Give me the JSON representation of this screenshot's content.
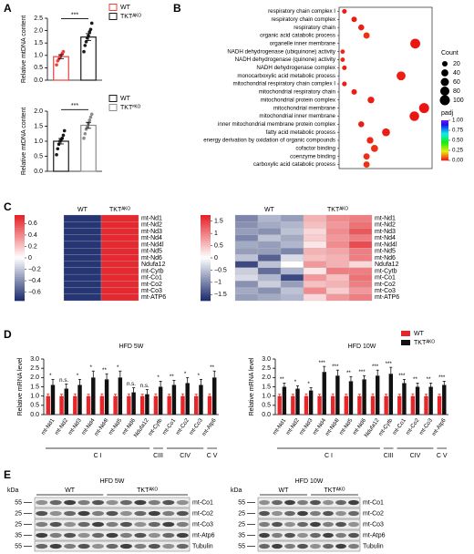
{
  "panels": [
    "A",
    "B",
    "C",
    "D",
    "E"
  ],
  "chart_data": [
    {
      "type": "bar",
      "ylabel": "Relative mtDNA content",
      "annotation": "***",
      "ylim": [
        0,
        2.5
      ],
      "yticks": [
        {
          "value": 0,
          "label": "0.0"
        },
        0.5,
        {
          "value": 1,
          "label": "1.0"
        },
        1.5,
        {
          "value": 2,
          "label": "2.0"
        },
        2.5
      ],
      "series": [
        {
          "name": "WT",
          "color": "#e8413c",
          "value": 0.95,
          "error": 0.08,
          "points": [
            0.62,
            0.78,
            0.85,
            0.95,
            1.0,
            1.08,
            1.15
          ]
        },
        {
          "name": "TKTᴬᴷᴼ",
          "color": "#1a1a1a",
          "value": 1.74,
          "error": 0.14,
          "points": [
            1.15,
            1.4,
            1.55,
            1.7,
            1.8,
            1.95,
            2.05,
            2.3
          ]
        }
      ]
    },
    {
      "type": "bar",
      "ylabel": "Relative mtDNA content",
      "annotation": "***",
      "ylim": [
        0,
        2
      ],
      "yticks": [
        {
          "value": 0,
          "label": "0.0"
        },
        0.5,
        {
          "value": 1,
          "label": "1.0"
        },
        1.5,
        {
          "value": 2,
          "label": "2.0"
        }
      ],
      "series": [
        {
          "name": "WT",
          "color": "#1a1a1a",
          "value": 1.0,
          "error": 0.09,
          "points": [
            0.55,
            0.75,
            0.9,
            1.0,
            1.05,
            1.1,
            1.2,
            1.35
          ]
        },
        {
          "name": "TKTꟳᴷᴼ",
          "color": "#8c8c8c",
          "value": 1.53,
          "error": 0.1,
          "points": [
            1.1,
            1.25,
            1.4,
            1.5,
            1.6,
            1.7,
            1.8,
            1.9
          ]
        }
      ]
    },
    {
      "type": "dot",
      "xlim": [
        0,
        0.21
      ],
      "clim": [
        0,
        1
      ],
      "categories": [
        "respiratory chain complex I",
        "respiratory chain complex",
        "respiratory chain",
        "organic acid catabolic process",
        "organelle inner membrane",
        "NADH dehydrogenase (ubiquinone) activity",
        "NADH dehydrogenase (quinone) activity",
        "NADH dehydrogenase complex",
        "monocarboxylic acid metabolic process",
        "mitochondrial respiratory chain complex I",
        "mitochondrial respiratory chain",
        "mitochondrial protein complex",
        "mitochondrial membrane",
        "mitochondrial inner membrane",
        "inner mitochondrial membrane protein complex",
        "fatty acid metabolic process",
        "energy derivation by oxidation of organic compounds",
        "cofactor binding",
        "coenzyme binding",
        "carboxylic acid catabolic process"
      ],
      "x": [
        0.012,
        0.034,
        0.05,
        0.062,
        0.172,
        0.008,
        0.008,
        0.012,
        0.14,
        0.012,
        0.034,
        0.072,
        0.192,
        0.17,
        0.05,
        0.106,
        0.07,
        0.08,
        0.062,
        0.062
      ],
      "sizes": [
        12,
        20,
        25,
        30,
        95,
        10,
        10,
        12,
        75,
        12,
        20,
        35,
        100,
        90,
        25,
        55,
        35,
        40,
        30,
        30
      ],
      "padj": [
        0.01,
        0.01,
        0.01,
        0.03,
        0.0,
        0.02,
        0.02,
        0.01,
        0.01,
        0.01,
        0.01,
        0.01,
        0.0,
        0.0,
        0.01,
        0.01,
        0.02,
        0.03,
        0.03,
        0.03
      ],
      "size_legend": {
        "title": "Count",
        "values": [
          20,
          40,
          60,
          80,
          100
        ]
      },
      "color_legend": {
        "title": "padj",
        "ticks": [
          {
            "value": 1,
            "label": "1.00"
          },
          0.75,
          {
            "value": 0.5,
            "label": "0.50"
          },
          0.25,
          {
            "value": 0,
            "label": "0.00"
          }
        ]
      }
    },
    {
      "type": "heatmap",
      "clim": [
        -0.75,
        0.75
      ],
      "groups": [
        "WT",
        "TKTᴬᴷᴼ"
      ],
      "cticks": [
        0.6,
        0.4,
        0.2,
        0,
        {
          "value": -0.2,
          "label": "−0.2"
        },
        {
          "value": -0.4,
          "label": "−0.4"
        },
        {
          "value": -0.6,
          "label": "−0.6"
        }
      ],
      "rows": [
        "mt-Nd1",
        "mt-Nd2",
        "mt-Nd3",
        "mt-Nd4",
        "mt-Nd4l",
        "mt-Nd5",
        "mt-Nd6",
        "Ndufa12",
        "mt-Cytb",
        "mt-Co1",
        "mt-Co2",
        "mt-Co3",
        "mt-ATP6"
      ],
      "values": [
        [
          -0.71,
          0.71
        ],
        [
          -0.71,
          0.71
        ],
        [
          -0.71,
          0.71
        ],
        [
          -0.71,
          0.71
        ],
        [
          -0.71,
          0.71
        ],
        [
          -0.71,
          0.71
        ],
        [
          -0.71,
          0.71
        ],
        [
          -0.71,
          0.71
        ],
        [
          -0.71,
          0.71
        ],
        [
          -0.71,
          0.71
        ],
        [
          -0.71,
          0.71
        ],
        [
          -0.71,
          0.71
        ],
        [
          -0.71,
          0.71
        ]
      ]
    },
    {
      "type": "heatmap",
      "clim": [
        -1.75,
        1.75
      ],
      "groups": [
        "WT",
        "TKTᴬᴷᴼ"
      ],
      "cticks": [
        1.5,
        1,
        0.5,
        0,
        {
          "value": -0.5,
          "label": "−0.5"
        },
        {
          "value": -1,
          "label": "−1"
        },
        {
          "value": -1.5,
          "label": "−1.5"
        }
      ],
      "rows": [
        "mt-Nd1",
        "mt-Nd2",
        "mt-Nd3",
        "mt-Nd4",
        "mt-Nd4l",
        "mt-Nd5",
        "mt-Nd6",
        "Ndufa12",
        "mt-Cytb",
        "mt-Co1",
        "mt-Co2",
        "mt-Co3",
        "mt-ATP6"
      ],
      "values": [
        [
          -1.0,
          -0.6,
          -0.8,
          0.6,
          0.9,
          1.0
        ],
        [
          -0.9,
          -0.7,
          -0.6,
          0.5,
          0.8,
          1.1
        ],
        [
          -0.8,
          -0.9,
          -0.5,
          0.3,
          0.9,
          1.3
        ],
        [
          -1.0,
          -0.5,
          -0.7,
          0.4,
          0.8,
          1.0
        ],
        [
          -0.7,
          -0.8,
          -0.6,
          0.2,
          0.9,
          1.4
        ],
        [
          -0.8,
          -0.8,
          -1.0,
          0.6,
          0.7,
          1.0
        ],
        [
          -0.5,
          -1.3,
          -0.3,
          0.5,
          0.6,
          1.0
        ],
        [
          -1.5,
          -0.5,
          0.0,
          0.8,
          0.6,
          0.3
        ],
        [
          -0.4,
          -1.2,
          -0.6,
          0.2,
          1.0,
          1.0
        ],
        [
          -0.3,
          -0.6,
          -1.5,
          0.8,
          0.5,
          1.1
        ],
        [
          -0.9,
          -0.4,
          -0.8,
          0.5,
          0.6,
          1.0
        ],
        [
          -0.7,
          -0.9,
          -0.5,
          0.9,
          0.4,
          0.8
        ],
        [
          -0.8,
          -0.7,
          -0.6,
          0.3,
          0.8,
          1.0
        ]
      ]
    },
    {
      "type": "grouped-bar",
      "title": "HFD 5W",
      "ylabel": "Relative mRNA level",
      "ylim": [
        0,
        3
      ],
      "yticks": [
        {
          "value": 0,
          "label": "0.0"
        },
        0.5,
        {
          "value": 1,
          "label": "1.0"
        },
        1.5,
        {
          "value": 2,
          "label": "2.0"
        },
        2.5,
        {
          "value": 3,
          "label": "3.0"
        }
      ],
      "categories": [
        "mt-Nd1",
        "mt-Nd2",
        "mt-Nd3",
        "mt-Nd4",
        "mt-Nd4l",
        "mt-Nd5",
        "mt-Nd6",
        "Ndufa12",
        "mt-Cytb",
        "mt-Co1",
        "mt-Co2",
        "mt-Co3",
        "mt-Atp6"
      ],
      "series": [
        {
          "color": "#e8262a",
          "values": [
            1,
            1,
            1,
            1,
            1,
            1,
            1,
            1,
            1,
            1,
            1,
            1,
            1
          ],
          "errors": [
            0.12,
            0.1,
            0.12,
            0.1,
            0.12,
            0.1,
            0.12,
            0.1,
            0.12,
            0.1,
            0.12,
            0.1,
            0.12
          ]
        },
        {
          "color": "#111111",
          "values": [
            1.6,
            1.4,
            1.6,
            2.0,
            1.9,
            2.0,
            1.2,
            1.1,
            1.5,
            1.6,
            1.7,
            1.6,
            2.0
          ],
          "errors": [
            0.3,
            0.25,
            0.3,
            0.35,
            0.3,
            0.35,
            0.25,
            0.25,
            0.3,
            0.25,
            0.3,
            0.3,
            0.35
          ]
        }
      ],
      "significance": [
        "*",
        "n.s.",
        "*",
        "*",
        "**",
        "*",
        "n.s.",
        "n.s.",
        "*",
        "**",
        "*",
        "*",
        "**"
      ],
      "groups": [
        {
          "label": "C I",
          "members": [
            "mt-Nd1",
            "mt-Nd2",
            "mt-Nd3",
            "mt-Nd4",
            "mt-Nd4l",
            "mt-Nd5",
            "mt-Nd6",
            "Ndufa12"
          ]
        },
        {
          "label": "CIII",
          "members": [
            "mt-Cytb"
          ]
        },
        {
          "label": "CIV",
          "members": [
            "mt-Co1",
            "mt-Co2",
            "mt-Co3"
          ]
        },
        {
          "label": "C V",
          "members": [
            "mt-Atp6"
          ]
        }
      ]
    },
    {
      "type": "grouped-bar",
      "title": "HFD 10W",
      "ylabel": "Relative mRNA level",
      "ylim": [
        0,
        3
      ],
      "yticks": [
        {
          "value": 0,
          "label": "0.0"
        },
        0.5,
        {
          "value": 1,
          "label": "1.0"
        },
        1.5,
        {
          "value": 2,
          "label": "2.0"
        },
        2.5,
        {
          "value": 3,
          "label": "3.0"
        }
      ],
      "categories": [
        "mt-Nd1",
        "mt-Nd2",
        "mt-Nd3",
        "mt-Nd4",
        "mt-Nd4l",
        "mt-Nd5",
        "mt-Nd6",
        "Ndufa12",
        "mt-Cytb",
        "mt-Co1",
        "mt-Co2",
        "mt-Co3",
        "mt-Atp6"
      ],
      "series": [
        {
          "name": "WT",
          "color": "#e8262a",
          "values": [
            1,
            1,
            1,
            1,
            1,
            1,
            1,
            1,
            1,
            1,
            1,
            1,
            1
          ],
          "errors": [
            0.1,
            0.1,
            0.12,
            0.1,
            0.12,
            0.1,
            0.1,
            0.12,
            0.1,
            0.1,
            0.12,
            0.1,
            0.1
          ]
        },
        {
          "name": "TKTᴬᴷᴼ",
          "color": "#111111",
          "values": [
            1.5,
            1.4,
            1.3,
            2.3,
            2.1,
            1.8,
            1.9,
            2.1,
            2.2,
            1.7,
            1.5,
            1.5,
            1.6
          ],
          "errors": [
            0.2,
            0.15,
            0.15,
            0.3,
            0.3,
            0.25,
            0.2,
            0.3,
            0.35,
            0.2,
            0.2,
            0.2,
            0.2
          ]
        }
      ],
      "significance": [
        "**",
        "*",
        "*",
        "***",
        "***",
        "**",
        "***",
        "***",
        "***",
        "***",
        "**",
        "**",
        "***"
      ],
      "groups": [
        {
          "label": "C I",
          "members": [
            "mt-Nd1",
            "mt-Nd2",
            "mt-Nd3",
            "mt-Nd4",
            "mt-Nd4l",
            "mt-Nd5",
            "mt-Nd6",
            "Ndufa12"
          ]
        },
        {
          "label": "CIII",
          "members": [
            "mt-Cytb"
          ]
        },
        {
          "label": "CIV",
          "members": [
            "mt-Co1",
            "mt-Co2",
            "mt-Co3"
          ]
        },
        {
          "label": "C V",
          "members": [
            "mt-Atp6"
          ]
        }
      ]
    }
  ],
  "blots": [
    {
      "title": "HFD 5W",
      "unit": "kDa",
      "groups": [
        "WT",
        "TKTᴬᴷᴼ"
      ],
      "rows": [
        {
          "label": "mt-Co1",
          "marker": 55
        },
        {
          "label": "mt-Co2",
          "marker": 25
        },
        {
          "label": "mt-Co3",
          "marker": 25
        },
        {
          "label": "mt-Atp6",
          "marker": 35
        },
        {
          "label": "Tubulin",
          "marker": 55
        }
      ]
    },
    {
      "title": "HFD 10W",
      "unit": "kDa",
      "groups": [
        "WT",
        "TKTᴬᴷᴼ"
      ],
      "rows": [
        {
          "label": "mt-Co1",
          "marker": 55
        },
        {
          "label": "mt-Co2",
          "marker": 25
        },
        {
          "label": "mt-Co3",
          "marker": 25
        },
        {
          "label": "mt-Atp6",
          "marker": 35
        },
        {
          "label": "Tubulin",
          "marker": 55
        }
      ]
    }
  ]
}
